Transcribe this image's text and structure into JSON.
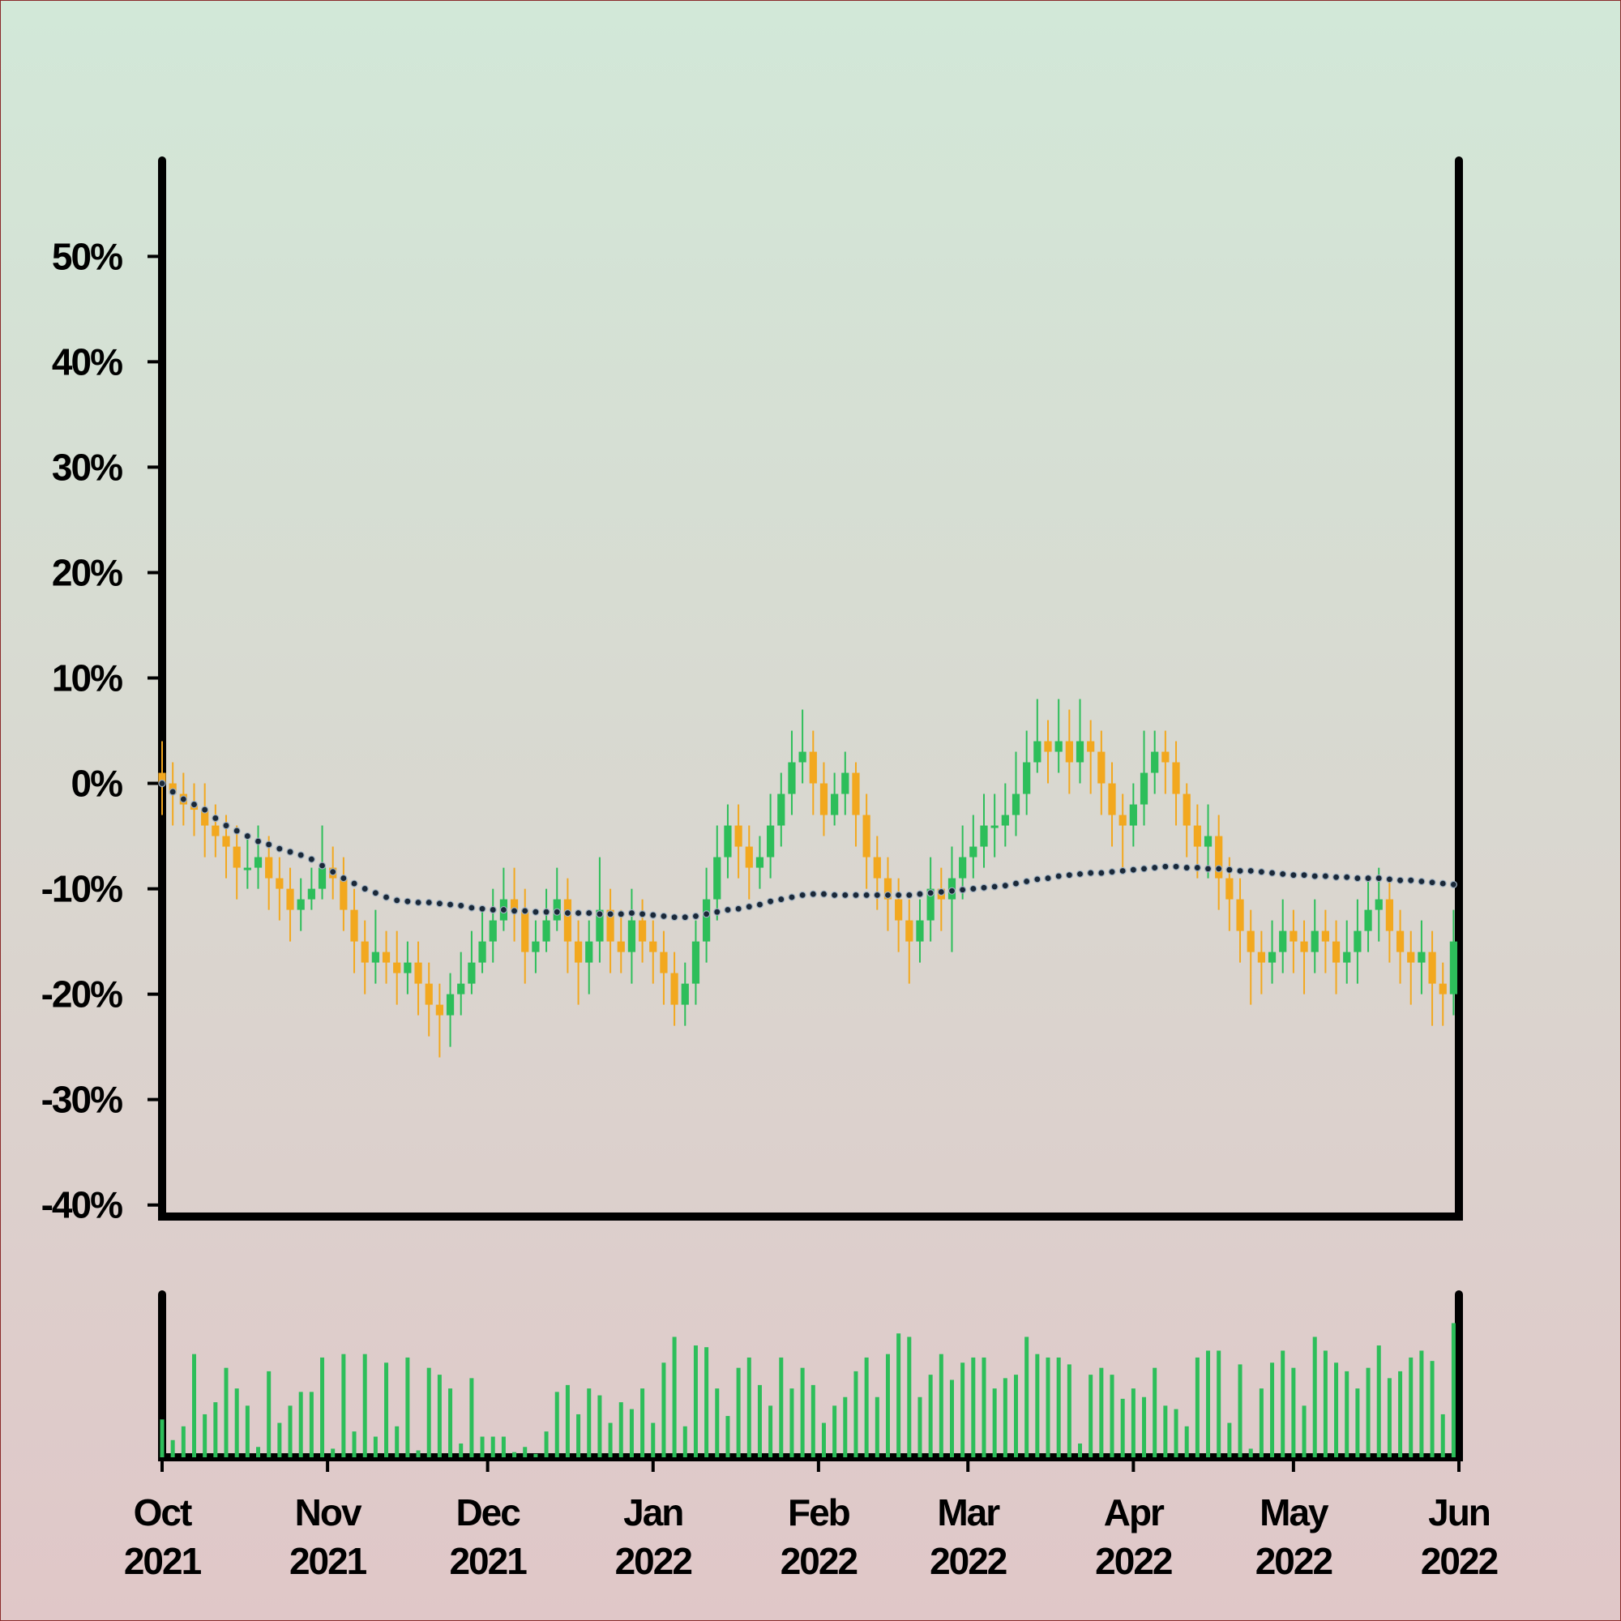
{
  "chart_data": {
    "type": "candlestick",
    "up_color": "#2dbe5a",
    "down_color": "#f2a81f",
    "xlim": [
      0,
      243
    ],
    "xticks": [
      {
        "value": 0,
        "label": "Oct 2021"
      },
      {
        "value": 31,
        "label": "Nov 2021"
      },
      {
        "value": 61,
        "label": "Dec 2021"
      },
      {
        "value": 92,
        "label": "Jan 2022"
      },
      {
        "value": 123,
        "label": "Feb 2022"
      },
      {
        "value": 151,
        "label": "Mar 2022"
      },
      {
        "value": 182,
        "label": "Apr 2022"
      },
      {
        "value": 212,
        "label": "May 2022"
      },
      {
        "value": 243,
        "label": "Jun 2022"
      }
    ],
    "ylim": [
      -41.1,
      59.1
    ],
    "yticks": [
      {
        "value": -40,
        "label": "-40%"
      },
      {
        "value": -30,
        "label": "-30%"
      },
      {
        "value": -20,
        "label": "-20%"
      },
      {
        "value": -10,
        "label": "-10%"
      },
      {
        "value": 0,
        "label": "0%"
      },
      {
        "value": 10,
        "label": "10%"
      },
      {
        "value": 20,
        "label": "20%"
      },
      {
        "value": 30,
        "label": "30%"
      },
      {
        "value": 40,
        "label": "40%"
      },
      {
        "value": 50,
        "label": "50%"
      }
    ],
    "x": [
      0,
      2,
      4,
      6,
      8,
      10,
      12,
      14,
      16,
      18,
      20,
      22,
      24,
      26,
      28,
      30,
      32,
      34,
      36,
      38,
      40,
      42,
      44,
      46,
      48,
      50,
      52,
      54,
      56,
      58,
      60,
      62,
      64,
      66,
      68,
      70,
      72,
      74,
      76,
      78,
      80,
      82,
      84,
      86,
      88,
      90,
      92,
      94,
      96,
      98,
      100,
      102,
      104,
      106,
      108,
      110,
      112,
      114,
      116,
      118,
      120,
      122,
      124,
      126,
      128,
      130,
      132,
      134,
      136,
      138,
      140,
      142,
      144,
      146,
      148,
      150,
      152,
      154,
      156,
      158,
      160,
      162,
      164,
      166,
      168,
      170,
      172,
      174,
      176,
      178,
      180,
      182,
      184,
      186,
      188,
      190,
      192,
      194,
      196,
      198,
      200,
      202,
      204,
      206,
      208,
      210,
      212,
      214,
      216,
      218,
      220,
      222,
      224,
      226,
      228,
      230,
      232,
      234,
      236,
      238,
      240,
      242
    ],
    "open": [
      1,
      0,
      -1,
      -2,
      -2.5,
      -4,
      -5,
      -6,
      -8,
      -8,
      -7,
      -9,
      -10,
      -12,
      -11,
      -10,
      -8,
      -9,
      -12,
      -15,
      -17,
      -16,
      -17,
      -18,
      -17,
      -19,
      -21,
      -22,
      -20,
      -19,
      -17,
      -15,
      -13,
      -11,
      -12,
      -16,
      -15,
      -13,
      -11,
      -15,
      -17,
      -15,
      -12,
      -15,
      -16,
      -13,
      -15,
      -16,
      -18,
      -21,
      -19,
      -15,
      -11,
      -7,
      -4,
      -6,
      -8,
      -7,
      -4,
      -1,
      2,
      3,
      0,
      -3,
      -1,
      1,
      -3,
      -7,
      -9,
      -11,
      -13,
      -15,
      -13,
      -10,
      -11,
      -9,
      -7,
      -6,
      -4,
      -4,
      -3,
      -1,
      2,
      4,
      3,
      4,
      2,
      4,
      3,
      0,
      -3,
      -4,
      -2,
      1,
      3,
      2,
      -1,
      -4,
      -6,
      -5,
      -9,
      -11,
      -14,
      -16,
      -17,
      -16,
      -14,
      -15,
      -16,
      -14,
      -15,
      -17,
      -16,
      -14,
      -12,
      -11,
      -14,
      -16,
      -17,
      -16,
      -19,
      -20
    ],
    "high": [
      4,
      2,
      1,
      0,
      0,
      -2,
      -3,
      -4,
      -5,
      -4,
      -5,
      -7,
      -8,
      -9,
      -8,
      -4,
      -6,
      -7,
      -10,
      -13,
      -12,
      -14,
      -14,
      -15,
      -15,
      -17,
      -19,
      -18,
      -16,
      -14,
      -12,
      -10,
      -8,
      -8,
      -10,
      -13,
      -10,
      -8,
      -9,
      -13,
      -13,
      -7,
      -10,
      -12,
      -10,
      -11,
      -13,
      -14,
      -16,
      -17,
      -13,
      -8,
      -4,
      -2,
      -2,
      -4,
      -5,
      -1,
      1,
      5,
      7,
      5,
      2,
      1,
      3,
      2,
      -1,
      -5,
      -7,
      -9,
      -11,
      -11,
      -7,
      -8,
      -6,
      -4,
      -3,
      -1,
      -1,
      0,
      3,
      5,
      8,
      6,
      8,
      7,
      8,
      6,
      5,
      2,
      -1,
      0,
      5,
      5,
      5,
      4,
      0,
      -2,
      -2,
      -3,
      -7,
      -9,
      -12,
      -14,
      -13,
      -11,
      -12,
      -13,
      -11,
      -12,
      -13,
      -13,
      -11,
      -9,
      -8,
      -9,
      -12,
      -14,
      -13,
      -14,
      -17,
      -12
    ],
    "low": [
      -3,
      -4,
      -4,
      -5,
      -7,
      -7,
      -9,
      -11,
      -10,
      -10,
      -12,
      -13,
      -15,
      -14,
      -12,
      -11,
      -11,
      -14,
      -18,
      -20,
      -19,
      -19,
      -21,
      -20,
      -22,
      -24,
      -26,
      -25,
      -22,
      -20,
      -18,
      -17,
      -14,
      -15,
      -19,
      -18,
      -16,
      -14,
      -18,
      -21,
      -20,
      -17,
      -18,
      -18,
      -19,
      -17,
      -19,
      -21,
      -23,
      -23,
      -21,
      -17,
      -13,
      -9,
      -9,
      -11,
      -10,
      -9,
      -6,
      -3,
      0,
      -3,
      -5,
      -4,
      -3,
      -6,
      -10,
      -12,
      -14,
      -16,
      -19,
      -17,
      -15,
      -14,
      -16,
      -11,
      -9,
      -8,
      -7,
      -6,
      -5,
      -3,
      1,
      0,
      1,
      -1,
      0,
      -1,
      -3,
      -6,
      -8,
      -6,
      -4,
      -1,
      -1,
      -4,
      -7,
      -9,
      -9,
      -12,
      -14,
      -17,
      -21,
      -20,
      -19,
      -18,
      -18,
      -20,
      -18,
      -18,
      -20,
      -19,
      -19,
      -16,
      -15,
      -17,
      -19,
      -21,
      -20,
      -23,
      -23,
      -22
    ],
    "close": [
      0,
      -1,
      -2,
      -2.5,
      -4,
      -5,
      -6,
      -8,
      -8,
      -7,
      -9,
      -10,
      -12,
      -11,
      -10,
      -8,
      -9,
      -12,
      -15,
      -17,
      -16,
      -17,
      -18,
      -17,
      -19,
      -21,
      -22,
      -20,
      -19,
      -17,
      -15,
      -13,
      -11,
      -12,
      -16,
      -15,
      -13,
      -11,
      -15,
      -17,
      -15,
      -12,
      -15,
      -16,
      -13,
      -15,
      -16,
      -18,
      -21,
      -19,
      -15,
      -11,
      -7,
      -4,
      -6,
      -8,
      -7,
      -4,
      -1,
      2,
      3,
      0,
      -3,
      -1,
      1,
      -3,
      -7,
      -9,
      -11,
      -13,
      -15,
      -13,
      -10,
      -11,
      -9,
      -7,
      -6,
      -4,
      -4,
      -3,
      -1,
      2,
      4,
      3,
      4,
      2,
      4,
      3,
      0,
      -3,
      -4,
      -2,
      1,
      3,
      2,
      -1,
      -4,
      -6,
      -5,
      -9,
      -11,
      -14,
      -16,
      -17,
      -16,
      -14,
      -15,
      -16,
      -14,
      -15,
      -17,
      -16,
      -14,
      -12,
      -11,
      -14,
      -16,
      -17,
      -16,
      -19,
      -20,
      -15
    ],
    "ma": {
      "color": "#1a2838",
      "values": [
        0,
        -0.8,
        -1.5,
        -2,
        -2.5,
        -3.3,
        -4,
        -4.5,
        -5,
        -5.5,
        -5.8,
        -6.2,
        -6.5,
        -6.8,
        -7.2,
        -7.8,
        -8.4,
        -9,
        -9.5,
        -10,
        -10.4,
        -10.8,
        -11.1,
        -11.2,
        -11.3,
        -11.3,
        -11.4,
        -11.5,
        -11.6,
        -11.8,
        -11.9,
        -12,
        -12,
        -12.1,
        -12.1,
        -12.2,
        -12.2,
        -12.2,
        -12.3,
        -12.3,
        -12.3,
        -12.4,
        -12.4,
        -12.4,
        -12.3,
        -12.4,
        -12.5,
        -12.6,
        -12.7,
        -12.7,
        -12.6,
        -12.4,
        -12.2,
        -12,
        -11.9,
        -11.7,
        -11.5,
        -11.2,
        -11,
        -10.8,
        -10.6,
        -10.5,
        -10.5,
        -10.6,
        -10.6,
        -10.6,
        -10.6,
        -10.6,
        -10.6,
        -10.6,
        -10.6,
        -10.5,
        -10.4,
        -10.3,
        -10.2,
        -10.1,
        -10,
        -9.9,
        -9.8,
        -9.7,
        -9.5,
        -9.3,
        -9.1,
        -9,
        -8.8,
        -8.7,
        -8.6,
        -8.5,
        -8.5,
        -8.4,
        -8.3,
        -8.2,
        -8.1,
        -8,
        -7.9,
        -7.9,
        -8,
        -8,
        -8.1,
        -8.1,
        -8.2,
        -8.3,
        -8.3,
        -8.4,
        -8.5,
        -8.6,
        -8.7,
        -8.7,
        -8.8,
        -8.8,
        -8.9,
        -8.9,
        -9,
        -9,
        -9,
        -9.1,
        -9.2,
        -9.2,
        -9.3,
        -9.4,
        -9.5,
        -9.6
      ]
    },
    "volume": {
      "color": "#2dbe5a",
      "ylim": [
        0,
        90
      ],
      "values": [
        22,
        10,
        18,
        60,
        25,
        32,
        52,
        40,
        30,
        6,
        50,
        20,
        30,
        38,
        38,
        58,
        5,
        60,
        15,
        60,
        12,
        55,
        18,
        58,
        4,
        52,
        48,
        40,
        8,
        46,
        12,
        12,
        12,
        3,
        6,
        2,
        15,
        38,
        42,
        25,
        40,
        36,
        20,
        32,
        28,
        40,
        20,
        55,
        70,
        18,
        65,
        64,
        40,
        24,
        52,
        58,
        42,
        30,
        58,
        40,
        52,
        42,
        20,
        30,
        35,
        50,
        58,
        35,
        60,
        72,
        70,
        35,
        48,
        60,
        45,
        55,
        58,
        58,
        40,
        46,
        48,
        70,
        60,
        58,
        58,
        54,
        8,
        48,
        52,
        48,
        34,
        40,
        35,
        52,
        30,
        28,
        18,
        58,
        62,
        62,
        20,
        54,
        5,
        40,
        55,
        62,
        52,
        30,
        70,
        62,
        55,
        50,
        40,
        52,
        65,
        46,
        50,
        58,
        62,
        56,
        25,
        78
      ]
    }
  }
}
